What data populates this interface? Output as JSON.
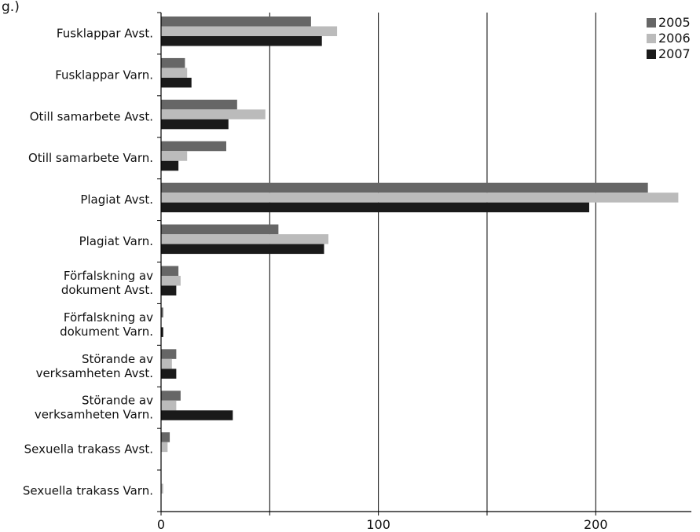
{
  "corner_text": "g.) ",
  "chart_data": {
    "type": "bar",
    "orientation": "horizontal",
    "categories": [
      [
        "Fusklappar Avst."
      ],
      [
        "Fusklappar Varn."
      ],
      [
        "Otill samarbete Avst."
      ],
      [
        "Otill samarbete Varn."
      ],
      [
        "Plagiat Avst."
      ],
      [
        "Plagiat Varn."
      ],
      [
        "Förfalskning av",
        "dokument Avst."
      ],
      [
        "Förfalskning av",
        "dokument Varn."
      ],
      [
        "Störande av",
        "verksamheten Avst."
      ],
      [
        "Störande av",
        "verksamheten Varn."
      ],
      [
        "Sexuella trakass Avst."
      ],
      [
        "Sexuella trakass Varn."
      ]
    ],
    "series": [
      {
        "name": "2005",
        "color": "#666666",
        "values": [
          69,
          11,
          35,
          30,
          224,
          54,
          8,
          1,
          7,
          9,
          4,
          0
        ]
      },
      {
        "name": "2006",
        "color": "#bbbbbb",
        "values": [
          81,
          12,
          48,
          12,
          238,
          77,
          9,
          0,
          5,
          7,
          3,
          1
        ]
      },
      {
        "name": "2007",
        "color": "#1a1a1a",
        "values": [
          74,
          14,
          31,
          8,
          197,
          75,
          7,
          1,
          7,
          33,
          0,
          0
        ]
      }
    ],
    "xticks": [
      "0",
      "100",
      "200"
    ],
    "xlim": [
      0,
      244
    ],
    "grid": true,
    "grid_step": 50,
    "legend_position": "top-right"
  }
}
